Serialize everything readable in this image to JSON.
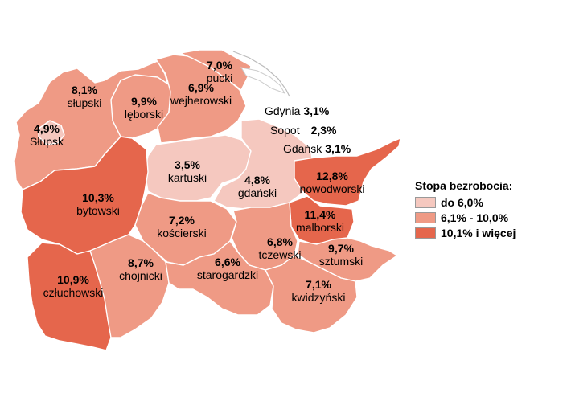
{
  "colors": {
    "low": "#f5c8bf",
    "mid": "#ef9a85",
    "high": "#e5664c",
    "lagoon": "#ffffff"
  },
  "regions": [
    {
      "id": "slupski",
      "name": "słupski",
      "value": "8,1%",
      "class": "mid"
    },
    {
      "id": "slupsk",
      "name": "Słupsk",
      "value": "4,9%",
      "class": "low"
    },
    {
      "id": "leborski",
      "name": "lęborski",
      "value": "9,9%",
      "class": "mid"
    },
    {
      "id": "wejherowski",
      "name": "wejherowski",
      "value": "6,9%",
      "class": "mid"
    },
    {
      "id": "pucki",
      "name": "pucki",
      "value": "7,0%",
      "class": "mid"
    },
    {
      "id": "kartuski",
      "name": "kartuski",
      "value": "3,5%",
      "class": "low"
    },
    {
      "id": "gdanski",
      "name": "gdański",
      "value": "4,8%",
      "class": "low"
    },
    {
      "id": "nowodworski",
      "name": "nowodworski",
      "value": "12,8%",
      "class": "high"
    },
    {
      "id": "bytowski",
      "name": "bytowski",
      "value": "10,3%",
      "class": "high"
    },
    {
      "id": "koscierski",
      "name": "kościerski",
      "value": "7,2%",
      "class": "mid"
    },
    {
      "id": "malborski",
      "name": "malborski",
      "value": "11,4%",
      "class": "high"
    },
    {
      "id": "tczewski",
      "name": "tczewski",
      "value": "6,8%",
      "class": "mid"
    },
    {
      "id": "sztumski",
      "name": "sztumski",
      "value": "9,7%",
      "class": "mid"
    },
    {
      "id": "czluchowski",
      "name": "człuchowski",
      "value": "10,9%",
      "class": "high"
    },
    {
      "id": "chojnicki",
      "name": "chojnicki",
      "value": "8,7%",
      "class": "mid"
    },
    {
      "id": "starogardzki",
      "name": "starogardzki",
      "value": "6,6%",
      "class": "mid"
    },
    {
      "id": "kwidzynski",
      "name": "kwidzyński",
      "value": "7,1%",
      "class": "mid"
    }
  ],
  "cities": [
    {
      "name": "Gdynia",
      "value": "3,1%"
    },
    {
      "name": "Sopot",
      "value": "2,3%"
    },
    {
      "name": "Gdańsk",
      "value": "3,1%"
    }
  ],
  "legend": {
    "title": "Stopa bezrobocia:",
    "items": [
      {
        "label": "do 6,0%",
        "class": "low"
      },
      {
        "label": "6,1% - 10,0%",
        "class": "mid"
      },
      {
        "label": "10,1% i więcej",
        "class": "high"
      }
    ]
  }
}
